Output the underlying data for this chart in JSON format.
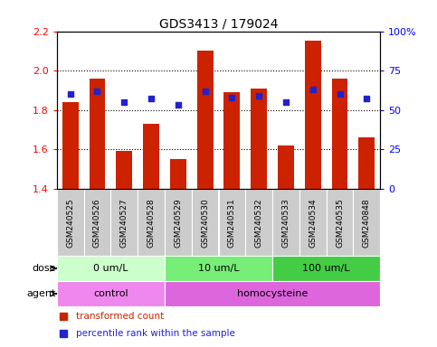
{
  "title": "GDS3413 / 179024",
  "samples": [
    "GSM240525",
    "GSM240526",
    "GSM240527",
    "GSM240528",
    "GSM240529",
    "GSM240530",
    "GSM240531",
    "GSM240532",
    "GSM240533",
    "GSM240534",
    "GSM240535",
    "GSM240848"
  ],
  "bar_values": [
    1.84,
    1.96,
    1.59,
    1.73,
    1.55,
    2.1,
    1.89,
    1.91,
    1.62,
    2.15,
    1.96,
    1.66
  ],
  "dot_values": [
    60,
    62,
    55,
    57,
    53,
    62,
    58,
    59,
    55,
    63,
    60,
    57
  ],
  "bar_color": "#cc2200",
  "dot_color": "#2222cc",
  "ylim_left": [
    1.4,
    2.2
  ],
  "ylim_right": [
    0,
    100
  ],
  "yticks_left": [
    1.4,
    1.6,
    1.8,
    2.0,
    2.2
  ],
  "yticks_right": [
    0,
    25,
    50,
    75,
    100
  ],
  "ytick_labels_right": [
    "0",
    "25",
    "50",
    "75",
    "100%"
  ],
  "dose_groups": [
    {
      "label": "0 um/L",
      "start": 0,
      "end": 4,
      "color": "#ccffcc"
    },
    {
      "label": "10 um/L",
      "start": 4,
      "end": 8,
      "color": "#77ee77"
    },
    {
      "label": "100 um/L",
      "start": 8,
      "end": 12,
      "color": "#44cc44"
    }
  ],
  "agent_groups": [
    {
      "label": "control",
      "start": 0,
      "end": 4,
      "color": "#ee88ee"
    },
    {
      "label": "homocysteine",
      "start": 4,
      "end": 12,
      "color": "#dd66dd"
    }
  ],
  "legend_bar_label": "transformed count",
  "legend_dot_label": "percentile rank within the sample",
  "dose_label": "dose",
  "agent_label": "agent",
  "bg_color": "#ffffff",
  "plot_bg_color": "#ffffff",
  "label_bg_color": "#cccccc"
}
